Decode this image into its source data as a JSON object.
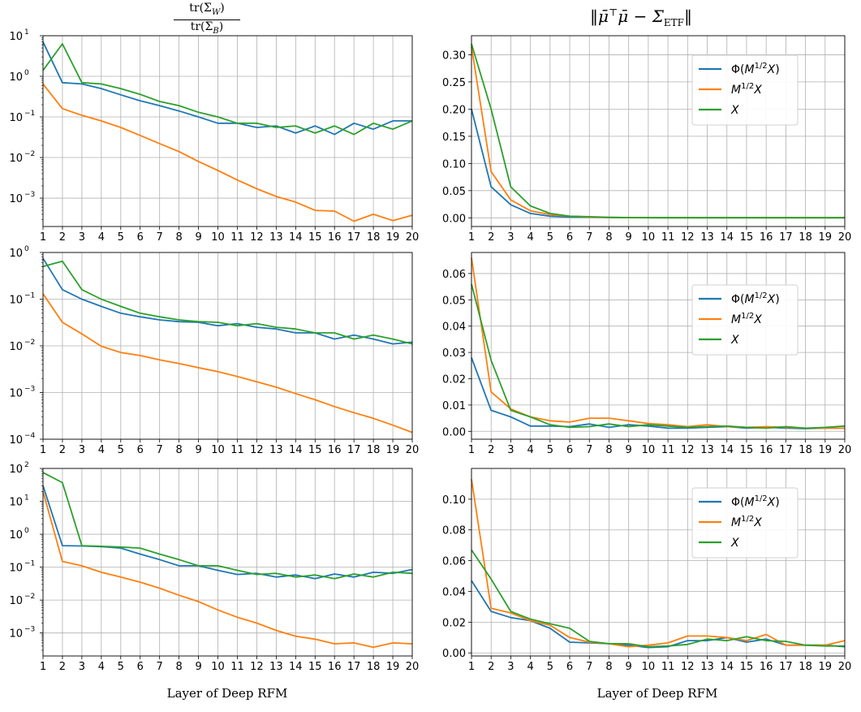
{
  "column_titles": {
    "left": "tr(Σ_W) / tr(Σ_B)",
    "left_numerator": "tr(Σ",
    "left_numerator_sub": "W",
    "left_denominator": "tr(Σ",
    "left_denominator_sub": "B",
    "right": "‖μ̄ᵀμ̄ − Σ_ETF‖",
    "right_main": "‖μ̄",
    "right_sup": "⊤",
    "right_mid": "μ̄ − Σ",
    "right_sub": "ETF",
    "right_end": "‖"
  },
  "x_axis_label": "Layer of Deep RFM",
  "legend_labels": [
    "Φ(M^1/2 X)",
    "M^1/2 X",
    "X"
  ],
  "colors": {
    "phi": "#1f77b4",
    "m": "#ff7f0e",
    "x": "#2ca02c"
  },
  "chart_data": [
    {
      "type": "line",
      "position": "row1-left",
      "yscale": "log",
      "ylim": [
        0.0002,
        10
      ],
      "y_ticks": [
        -3,
        -2,
        -1,
        0,
        1
      ],
      "x": [
        1,
        2,
        3,
        4,
        5,
        6,
        7,
        8,
        9,
        10,
        11,
        12,
        13,
        14,
        15,
        16,
        17,
        18,
        19,
        20
      ],
      "series": [
        {
          "name": "Φ(M^1/2 X)",
          "values": [
            7,
            0.7,
            0.65,
            0.5,
            0.35,
            0.25,
            0.19,
            0.14,
            0.1,
            0.07,
            0.07,
            0.055,
            0.06,
            0.04,
            0.06,
            0.037,
            0.07,
            0.05,
            0.08,
            0.08
          ]
        },
        {
          "name": "M^1/2 X",
          "values": [
            0.65,
            0.16,
            0.11,
            0.08,
            0.055,
            0.035,
            0.022,
            0.014,
            0.008,
            0.0048,
            0.0028,
            0.0017,
            0.0011,
            0.0008,
            0.0005,
            0.00048,
            0.00027,
            0.0004,
            0.00028,
            0.00038
          ]
        },
        {
          "name": "X",
          "values": [
            1.4,
            6.3,
            0.7,
            0.65,
            0.5,
            0.36,
            0.24,
            0.19,
            0.13,
            0.1,
            0.07,
            0.07,
            0.055,
            0.06,
            0.04,
            0.06,
            0.037,
            0.07,
            0.05,
            0.08
          ]
        }
      ]
    },
    {
      "type": "line",
      "position": "row1-right",
      "yscale": "linear",
      "ylim": [
        -0.016,
        0.335
      ],
      "y_ticks": [
        0,
        0.05,
        0.1,
        0.15,
        0.2,
        0.25,
        0.3
      ],
      "y_tick_labels": [
        "0.00",
        "0.05",
        "0.10",
        "0.15",
        "0.20",
        "0.25",
        "0.30"
      ],
      "x": [
        1,
        2,
        3,
        4,
        5,
        6,
        7,
        8,
        9,
        10,
        11,
        12,
        13,
        14,
        15,
        16,
        17,
        18,
        19,
        20
      ],
      "legend": "upper-right",
      "series": [
        {
          "name": "Φ(M^1/2 X)",
          "values": [
            0.2,
            0.057,
            0.024,
            0.008,
            0.003,
            0.0015,
            0.001,
            0.0005,
            0.0003,
            0.0002,
            0.0002,
            0.0001,
            0.0001,
            0.0001,
            0.0001,
            0.0001,
            0.0001,
            0.0001,
            0.0001,
            0.0001
          ]
        },
        {
          "name": "M^1/2 X",
          "values": [
            0.315,
            0.085,
            0.033,
            0.013,
            0.006,
            0.003,
            0.0015,
            0.0008,
            0.0004,
            0.0003,
            0.0002,
            0.0002,
            0.0001,
            0.0001,
            0.0001,
            0.0001,
            0.0001,
            0.0001,
            0.0001,
            0.0001
          ]
        },
        {
          "name": "X",
          "values": [
            0.32,
            0.2,
            0.057,
            0.022,
            0.008,
            0.003,
            0.002,
            0.001,
            0.0005,
            0.0003,
            0.0002,
            0.0002,
            0.0001,
            0.0001,
            0.0001,
            0.0001,
            0.0001,
            0.0001,
            0.0001,
            0.0001
          ]
        }
      ]
    },
    {
      "type": "line",
      "position": "row2-left",
      "yscale": "log",
      "ylim": [
        0.0001,
        1
      ],
      "y_ticks": [
        -4,
        -3,
        -2,
        -1,
        0
      ],
      "x": [
        1,
        2,
        3,
        4,
        5,
        6,
        7,
        8,
        9,
        10,
        11,
        12,
        13,
        14,
        15,
        16,
        17,
        18,
        19,
        20
      ],
      "series": [
        {
          "name": "Φ(M^1/2 X)",
          "values": [
            0.75,
            0.16,
            0.1,
            0.07,
            0.05,
            0.042,
            0.036,
            0.033,
            0.032,
            0.027,
            0.03,
            0.025,
            0.023,
            0.019,
            0.019,
            0.014,
            0.017,
            0.014,
            0.011,
            0.012
          ]
        },
        {
          "name": "M^1/2 X",
          "values": [
            0.13,
            0.032,
            0.018,
            0.0098,
            0.0072,
            0.0062,
            0.005,
            0.0042,
            0.0034,
            0.0028,
            0.0022,
            0.0017,
            0.0013,
            0.00095,
            0.0007,
            0.0005,
            0.00037,
            0.00028,
            0.0002,
            0.00014
          ]
        },
        {
          "name": "X",
          "values": [
            0.5,
            0.65,
            0.16,
            0.1,
            0.07,
            0.05,
            0.042,
            0.036,
            0.033,
            0.032,
            0.027,
            0.03,
            0.025,
            0.023,
            0.019,
            0.019,
            0.014,
            0.017,
            0.014,
            0.011
          ]
        }
      ]
    },
    {
      "type": "line",
      "position": "row2-right",
      "yscale": "linear",
      "ylim": [
        -0.003,
        0.068
      ],
      "y_ticks": [
        0,
        0.01,
        0.02,
        0.03,
        0.04,
        0.05,
        0.06
      ],
      "y_tick_labels": [
        "0.00",
        "0.01",
        "0.02",
        "0.03",
        "0.04",
        "0.05",
        "0.06"
      ],
      "x": [
        1,
        2,
        3,
        4,
        5,
        6,
        7,
        8,
        9,
        10,
        11,
        12,
        13,
        14,
        15,
        16,
        17,
        18,
        19,
        20
      ],
      "legend": "center-right",
      "series": [
        {
          "name": "Φ(M^1/2 X)",
          "values": [
            0.028,
            0.008,
            0.0055,
            0.002,
            0.002,
            0.0018,
            0.0028,
            0.0015,
            0.0025,
            0.002,
            0.0012,
            0.0012,
            0.0015,
            0.0018,
            0.0012,
            0.0015,
            0.0012,
            0.001,
            0.0012,
            0.0012
          ]
        },
        {
          "name": "M^1/2 X",
          "values": [
            0.066,
            0.015,
            0.0085,
            0.0055,
            0.004,
            0.0035,
            0.005,
            0.005,
            0.004,
            0.003,
            0.0025,
            0.0018,
            0.0025,
            0.0018,
            0.0015,
            0.0018,
            0.0015,
            0.0012,
            0.0012,
            0.0012
          ]
        },
        {
          "name": "X",
          "values": [
            0.056,
            0.027,
            0.008,
            0.0055,
            0.0025,
            0.0015,
            0.0018,
            0.0028,
            0.0018,
            0.0025,
            0.002,
            0.0015,
            0.0018,
            0.002,
            0.0015,
            0.0012,
            0.0018,
            0.0012,
            0.0015,
            0.002
          ]
        }
      ]
    },
    {
      "type": "line",
      "position": "row3-left",
      "yscale": "log",
      "ylim": [
        0.0002,
        100
      ],
      "y_ticks": [
        -3,
        -2,
        -1,
        0,
        1,
        2
      ],
      "x": [
        1,
        2,
        3,
        4,
        5,
        6,
        7,
        8,
        9,
        10,
        11,
        12,
        13,
        14,
        15,
        16,
        17,
        18,
        19,
        20
      ],
      "series": [
        {
          "name": "Φ(M^1/2 X)",
          "values": [
            30,
            0.45,
            0.44,
            0.42,
            0.38,
            0.25,
            0.17,
            0.11,
            0.11,
            0.08,
            0.06,
            0.065,
            0.05,
            0.058,
            0.045,
            0.062,
            0.05,
            0.07,
            0.065,
            0.085
          ]
        },
        {
          "name": "M^1/2 X",
          "values": [
            20,
            0.15,
            0.11,
            0.07,
            0.05,
            0.035,
            0.023,
            0.014,
            0.009,
            0.005,
            0.003,
            0.002,
            0.0012,
            0.0008,
            0.00065,
            0.00047,
            0.0005,
            0.00037,
            0.0005,
            0.00047
          ]
        },
        {
          "name": "X",
          "values": [
            75,
            37,
            0.45,
            0.43,
            0.41,
            0.38,
            0.25,
            0.17,
            0.11,
            0.11,
            0.08,
            0.06,
            0.065,
            0.05,
            0.058,
            0.045,
            0.062,
            0.05,
            0.07,
            0.065
          ]
        }
      ]
    },
    {
      "type": "line",
      "position": "row3-right",
      "yscale": "linear",
      "ylim": [
        -0.002,
        0.12
      ],
      "y_ticks": [
        0,
        0.02,
        0.04,
        0.06,
        0.08,
        0.1
      ],
      "y_tick_labels": [
        "0.00",
        "0.02",
        "0.04",
        "0.06",
        "0.08",
        "0.10"
      ],
      "x": [
        1,
        2,
        3,
        4,
        5,
        6,
        7,
        8,
        9,
        10,
        11,
        12,
        13,
        14,
        15,
        16,
        17,
        18,
        19,
        20
      ],
      "legend": "upper-right",
      "series": [
        {
          "name": "Φ(M^1/2 X)",
          "values": [
            0.047,
            0.027,
            0.023,
            0.021,
            0.016,
            0.007,
            0.0065,
            0.006,
            0.005,
            0.0035,
            0.004,
            0.008,
            0.008,
            0.01,
            0.007,
            0.009,
            0.005,
            0.005,
            0.005,
            0.004
          ]
        },
        {
          "name": "M^1/2 X",
          "values": [
            0.113,
            0.029,
            0.026,
            0.021,
            0.018,
            0.01,
            0.007,
            0.006,
            0.004,
            0.005,
            0.0065,
            0.011,
            0.011,
            0.01,
            0.008,
            0.012,
            0.005,
            0.005,
            0.005,
            0.008
          ]
        },
        {
          "name": "X",
          "values": [
            0.067,
            0.048,
            0.027,
            0.022,
            0.019,
            0.016,
            0.0075,
            0.006,
            0.006,
            0.004,
            0.0045,
            0.0055,
            0.009,
            0.008,
            0.0105,
            0.008,
            0.0075,
            0.005,
            0.0045,
            0.0045
          ]
        }
      ]
    }
  ]
}
